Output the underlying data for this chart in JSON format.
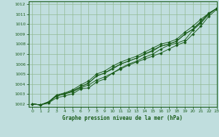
{
  "title": "Graphe pression niveau de la mer (hPa)",
  "bg_color": "#c0dede",
  "grid_color": "#90b890",
  "line_color": "#1a5c1a",
  "xlim": [
    -0.5,
    23
  ],
  "ylim": [
    1001.7,
    1012.3
  ],
  "yticks": [
    1002,
    1003,
    1004,
    1005,
    1006,
    1007,
    1008,
    1009,
    1010,
    1011,
    1012
  ],
  "xticks": [
    0,
    1,
    2,
    3,
    4,
    5,
    6,
    7,
    8,
    9,
    10,
    11,
    12,
    13,
    14,
    15,
    16,
    17,
    18,
    19,
    20,
    21,
    22,
    23
  ],
  "series": [
    [
      1002.0,
      1001.9,
      1002.1,
      1002.8,
      1003.0,
      1003.2,
      1003.6,
      1003.9,
      1004.4,
      1004.7,
      1005.1,
      1005.5,
      1005.9,
      1006.2,
      1006.5,
      1006.8,
      1007.1,
      1007.5,
      1007.9,
      1008.2,
      1009.0,
      1009.8,
      1010.8,
      1011.5
    ],
    [
      1002.0,
      1001.9,
      1002.2,
      1002.8,
      1003.0,
      1003.3,
      1003.7,
      1004.1,
      1004.8,
      1005.1,
      1005.6,
      1006.0,
      1006.3,
      1006.6,
      1007.0,
      1007.4,
      1007.8,
      1008.0,
      1008.3,
      1009.0,
      1009.5,
      1010.3,
      1011.1,
      1011.6
    ],
    [
      1002.0,
      1001.9,
      1002.2,
      1002.9,
      1003.1,
      1003.4,
      1003.9,
      1004.3,
      1005.0,
      1005.3,
      1005.8,
      1006.2,
      1006.5,
      1006.8,
      1007.2,
      1007.6,
      1008.0,
      1008.2,
      1008.5,
      1009.2,
      1009.8,
      1010.5,
      1011.1,
      1011.6
    ],
    [
      1002.0,
      1001.9,
      1002.2,
      1002.8,
      1003.0,
      1003.3,
      1003.7,
      1004.1,
      1004.8,
      1005.1,
      1005.5,
      1006.0,
      1006.3,
      1006.6,
      1007.0,
      1007.3,
      1007.8,
      1008.0,
      1008.3,
      1009.0,
      1009.5,
      1010.2,
      1011.1,
      1011.6
    ],
    [
      1002.0,
      1001.9,
      1002.1,
      1002.6,
      1002.8,
      1003.0,
      1003.5,
      1003.6,
      1004.2,
      1004.5,
      1005.1,
      1005.6,
      1006.0,
      1006.3,
      1006.7,
      1007.0,
      1007.5,
      1007.9,
      1008.1,
      1008.4,
      1009.4,
      1010.1,
      1011.0,
      1011.6
    ]
  ],
  "markers": [
    "D",
    ">",
    "D",
    ">",
    "D"
  ]
}
